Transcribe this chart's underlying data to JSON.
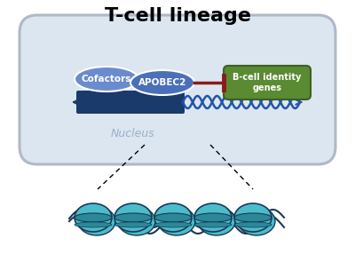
{
  "title": "T-cell lineage",
  "title_fontsize": 16,
  "title_fontweight": "bold",
  "bg_color": "#ffffff",
  "nucleus_fill": "#dce6f0",
  "nucleus_stroke": "#b0b8c8",
  "cofactors_color": "#6b8ccc",
  "apobec2_color": "#4a6fbb",
  "dna_rect_color": "#1a3a6b",
  "dna_wave_color": "#2255aa",
  "repressor_line_color": "#8b1a1a",
  "bcell_fill": "#5a8a32",
  "bcell_stroke": "#3d6122",
  "nucleus_label": "Nucleus",
  "nucleus_label_color": "#9ab0cc",
  "cofactors_label": "Cofactors",
  "apobec2_label": "APOBEC2",
  "bcell_label": "B-cell identity\ngenes",
  "nucleosome_color1": "#4bbccc",
  "nucleosome_color2": "#2a8899",
  "nucleosome_dark": "#1a3a55"
}
